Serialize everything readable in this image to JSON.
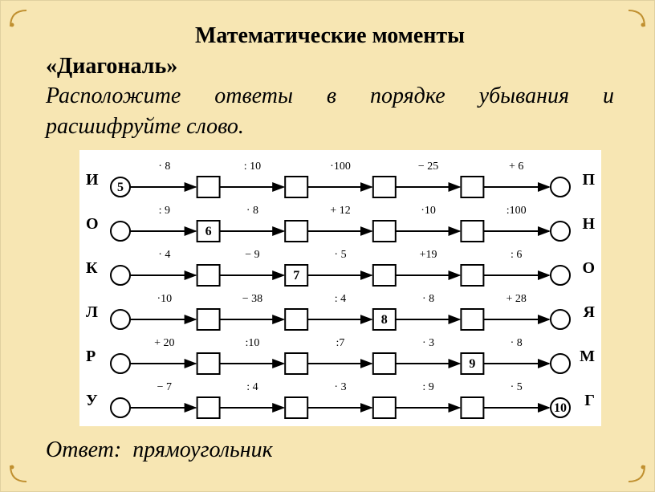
{
  "title_main": "Математические моменты",
  "subtitle": "«Диагональ»",
  "instruction": "Расположите ответы в порядке убывания и расшифруйте слово.",
  "answer_label": "Ответ:",
  "answer_value": "прямоугольник",
  "diagram": {
    "node_circle_r": 12,
    "node_box_w": 28,
    "node_box_h": 26,
    "stroke": "#000",
    "stroke_width": 2,
    "font_size_op": 14,
    "font_size_val": 16,
    "font_family": "Georgia, serif",
    "rows": [
      {
        "left": "И",
        "right": "П",
        "start": {
          "shape": "circle",
          "value": "5"
        },
        "ops": [
          "· 8",
          ": 10",
          "·100",
          "− 25",
          "+ 6"
        ],
        "cells": [
          {
            "shape": "box",
            "value": ""
          },
          {
            "shape": "box",
            "value": ""
          },
          {
            "shape": "box",
            "value": ""
          },
          {
            "shape": "box",
            "value": ""
          },
          {
            "shape": "circle",
            "value": ""
          }
        ]
      },
      {
        "left": "О",
        "right": "Н",
        "start": {
          "shape": "circle",
          "value": ""
        },
        "ops": [
          ": 9",
          "· 8",
          "+ 12",
          "·10",
          ":100"
        ],
        "cells": [
          {
            "shape": "box",
            "value": "6"
          },
          {
            "shape": "box",
            "value": ""
          },
          {
            "shape": "box",
            "value": ""
          },
          {
            "shape": "box",
            "value": ""
          },
          {
            "shape": "circle",
            "value": ""
          }
        ]
      },
      {
        "left": "К",
        "right": "О",
        "start": {
          "shape": "circle",
          "value": ""
        },
        "ops": [
          "· 4",
          "− 9",
          "· 5",
          "+19",
          ": 6"
        ],
        "cells": [
          {
            "shape": "box",
            "value": ""
          },
          {
            "shape": "box",
            "value": "7"
          },
          {
            "shape": "box",
            "value": ""
          },
          {
            "shape": "box",
            "value": ""
          },
          {
            "shape": "circle",
            "value": ""
          }
        ]
      },
      {
        "left": "Л",
        "right": "Я",
        "start": {
          "shape": "circle",
          "value": ""
        },
        "ops": [
          "·10",
          "− 38",
          ": 4",
          "· 8",
          "+ 28"
        ],
        "cells": [
          {
            "shape": "box",
            "value": ""
          },
          {
            "shape": "box",
            "value": ""
          },
          {
            "shape": "box",
            "value": "8"
          },
          {
            "shape": "box",
            "value": ""
          },
          {
            "shape": "circle",
            "value": ""
          }
        ]
      },
      {
        "left": "Р",
        "right": "М",
        "start": {
          "shape": "circle",
          "value": ""
        },
        "ops": [
          "+ 20",
          ":10",
          ":7",
          "· 3",
          "· 8"
        ],
        "cells": [
          {
            "shape": "box",
            "value": ""
          },
          {
            "shape": "box",
            "value": ""
          },
          {
            "shape": "box",
            "value": ""
          },
          {
            "shape": "box",
            "value": "9"
          },
          {
            "shape": "circle",
            "value": ""
          }
        ]
      },
      {
        "left": "У",
        "right": "Г",
        "start": {
          "shape": "circle",
          "value": ""
        },
        "ops": [
          "− 7",
          ": 4",
          "· 3",
          ": 9",
          "· 5"
        ],
        "cells": [
          {
            "shape": "box",
            "value": ""
          },
          {
            "shape": "box",
            "value": ""
          },
          {
            "shape": "box",
            "value": ""
          },
          {
            "shape": "box",
            "value": ""
          },
          {
            "shape": "circle",
            "value": "10"
          }
        ]
      }
    ]
  },
  "colors": {
    "slide_bg": "#f7e6b3",
    "diagram_bg": "#ffffff",
    "corner": "#c09030"
  }
}
